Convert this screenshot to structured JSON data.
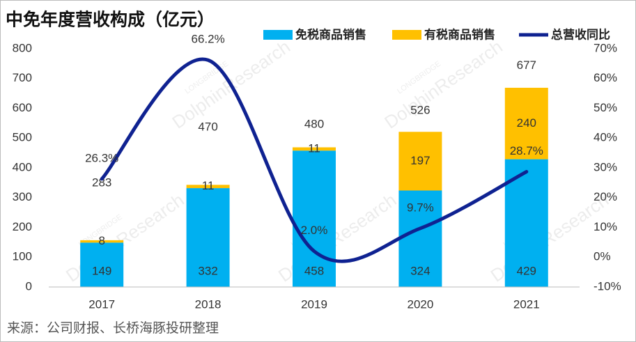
{
  "chart_data": {
    "type": "bar",
    "title": "中免年度营收构成（亿元）",
    "source": "来源：公司财报、长桥海豚投研整理",
    "watermark": [
      "LONGBRIDGE",
      "DolphinResearch"
    ],
    "categories": [
      "2017",
      "2018",
      "2019",
      "2020",
      "2021"
    ],
    "series": [
      {
        "name": "免税商品销售",
        "color": "#00b0f0",
        "values": [
          149,
          332,
          458,
          324,
          429
        ]
      },
      {
        "name": "有税商品销售",
        "color": "#ffc000",
        "values": [
          8,
          11,
          11,
          197,
          240
        ]
      },
      {
        "name": "总营收同比",
        "type": "line",
        "axis": "y2",
        "color": "#0f2291",
        "values": [
          26.3,
          66.2,
          2.0,
          9.7,
          28.7
        ],
        "value_labels": [
          "26.3%",
          "66.2%",
          "2.0%",
          "9.7%",
          "28.7%"
        ]
      }
    ],
    "total_labels": [
      283,
      470,
      480,
      526,
      677
    ],
    "ylim": [
      0,
      800
    ],
    "yticks": [
      0,
      100,
      200,
      300,
      400,
      500,
      600,
      700,
      800
    ],
    "y2lim": [
      -10,
      70
    ],
    "y2ticks": [
      {
        "value": -10,
        "label": "-10%"
      },
      {
        "value": 0,
        "label": "0%"
      },
      {
        "value": 10,
        "label": "10%"
      },
      {
        "value": 20,
        "label": "20%"
      },
      {
        "value": 30,
        "label": "30%"
      },
      {
        "value": 40,
        "label": "40%"
      },
      {
        "value": 50,
        "label": "50%"
      },
      {
        "value": 60,
        "label": "60%"
      },
      {
        "value": 70,
        "label": "70%"
      }
    ],
    "grid": false,
    "legend": "top-right"
  }
}
